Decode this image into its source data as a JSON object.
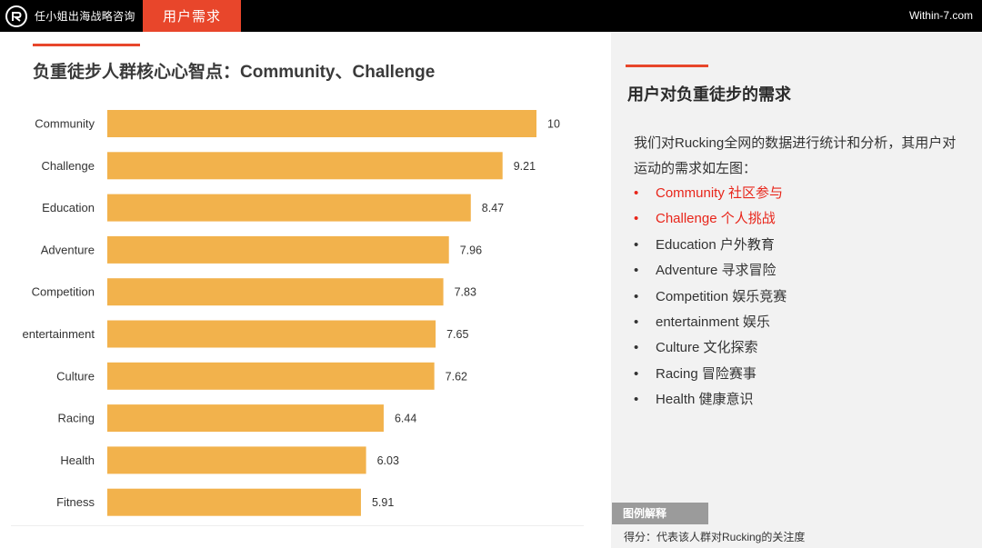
{
  "header": {
    "brand": "任小姐出海战略咨询",
    "active_tab": "用户需求",
    "site": "Within-7.com"
  },
  "left": {
    "title": "负重徒步人群核心心智点：Community、Challenge"
  },
  "chart_data": {
    "type": "bar",
    "orientation": "horizontal",
    "categories": [
      "Community",
      "Challenge",
      "Education",
      "Adventure",
      "Competition",
      "entertainment",
      "Culture",
      "Racing",
      "Health",
      "Fitness"
    ],
    "values": [
      10,
      9.21,
      8.47,
      7.96,
      7.83,
      7.65,
      7.62,
      6.44,
      6.03,
      5.91
    ],
    "data_labels": [
      "10",
      "9.21",
      "8.47",
      "7.96",
      "7.83",
      "7.65",
      "7.62",
      "6.44",
      "6.03",
      "5.91"
    ],
    "xlim": [
      0,
      10
    ],
    "grid": false,
    "bar_color": "#f2b24c"
  },
  "right": {
    "title": "用户对负重徒步的需求",
    "description": "我们对Rucking全网的数据进行统计和分析，其用户对运动的需求如左图：",
    "items": [
      {
        "label": "Community 社区参与",
        "highlight": true
      },
      {
        "label": "Challenge 个人挑战",
        "highlight": true
      },
      {
        "label": "Education 户外教育",
        "highlight": false
      },
      {
        "label": "Adventure 寻求冒险",
        "highlight": false
      },
      {
        "label": "Competition 娱乐竞赛",
        "highlight": false
      },
      {
        "label": "entertainment 娱乐",
        "highlight": false
      },
      {
        "label": "Culture 文化探索",
        "highlight": false
      },
      {
        "label": "Racing 冒险赛事",
        "highlight": false
      },
      {
        "label": "Health  健康意识",
        "highlight": false
      }
    ],
    "legend_tag": "图例解释",
    "legend_text": "得分：代表该人群对Rucking的关注度"
  },
  "colors": {
    "accent": "#e8462b",
    "highlight_text": "#e8251a",
    "bar": "#f2b24c"
  }
}
